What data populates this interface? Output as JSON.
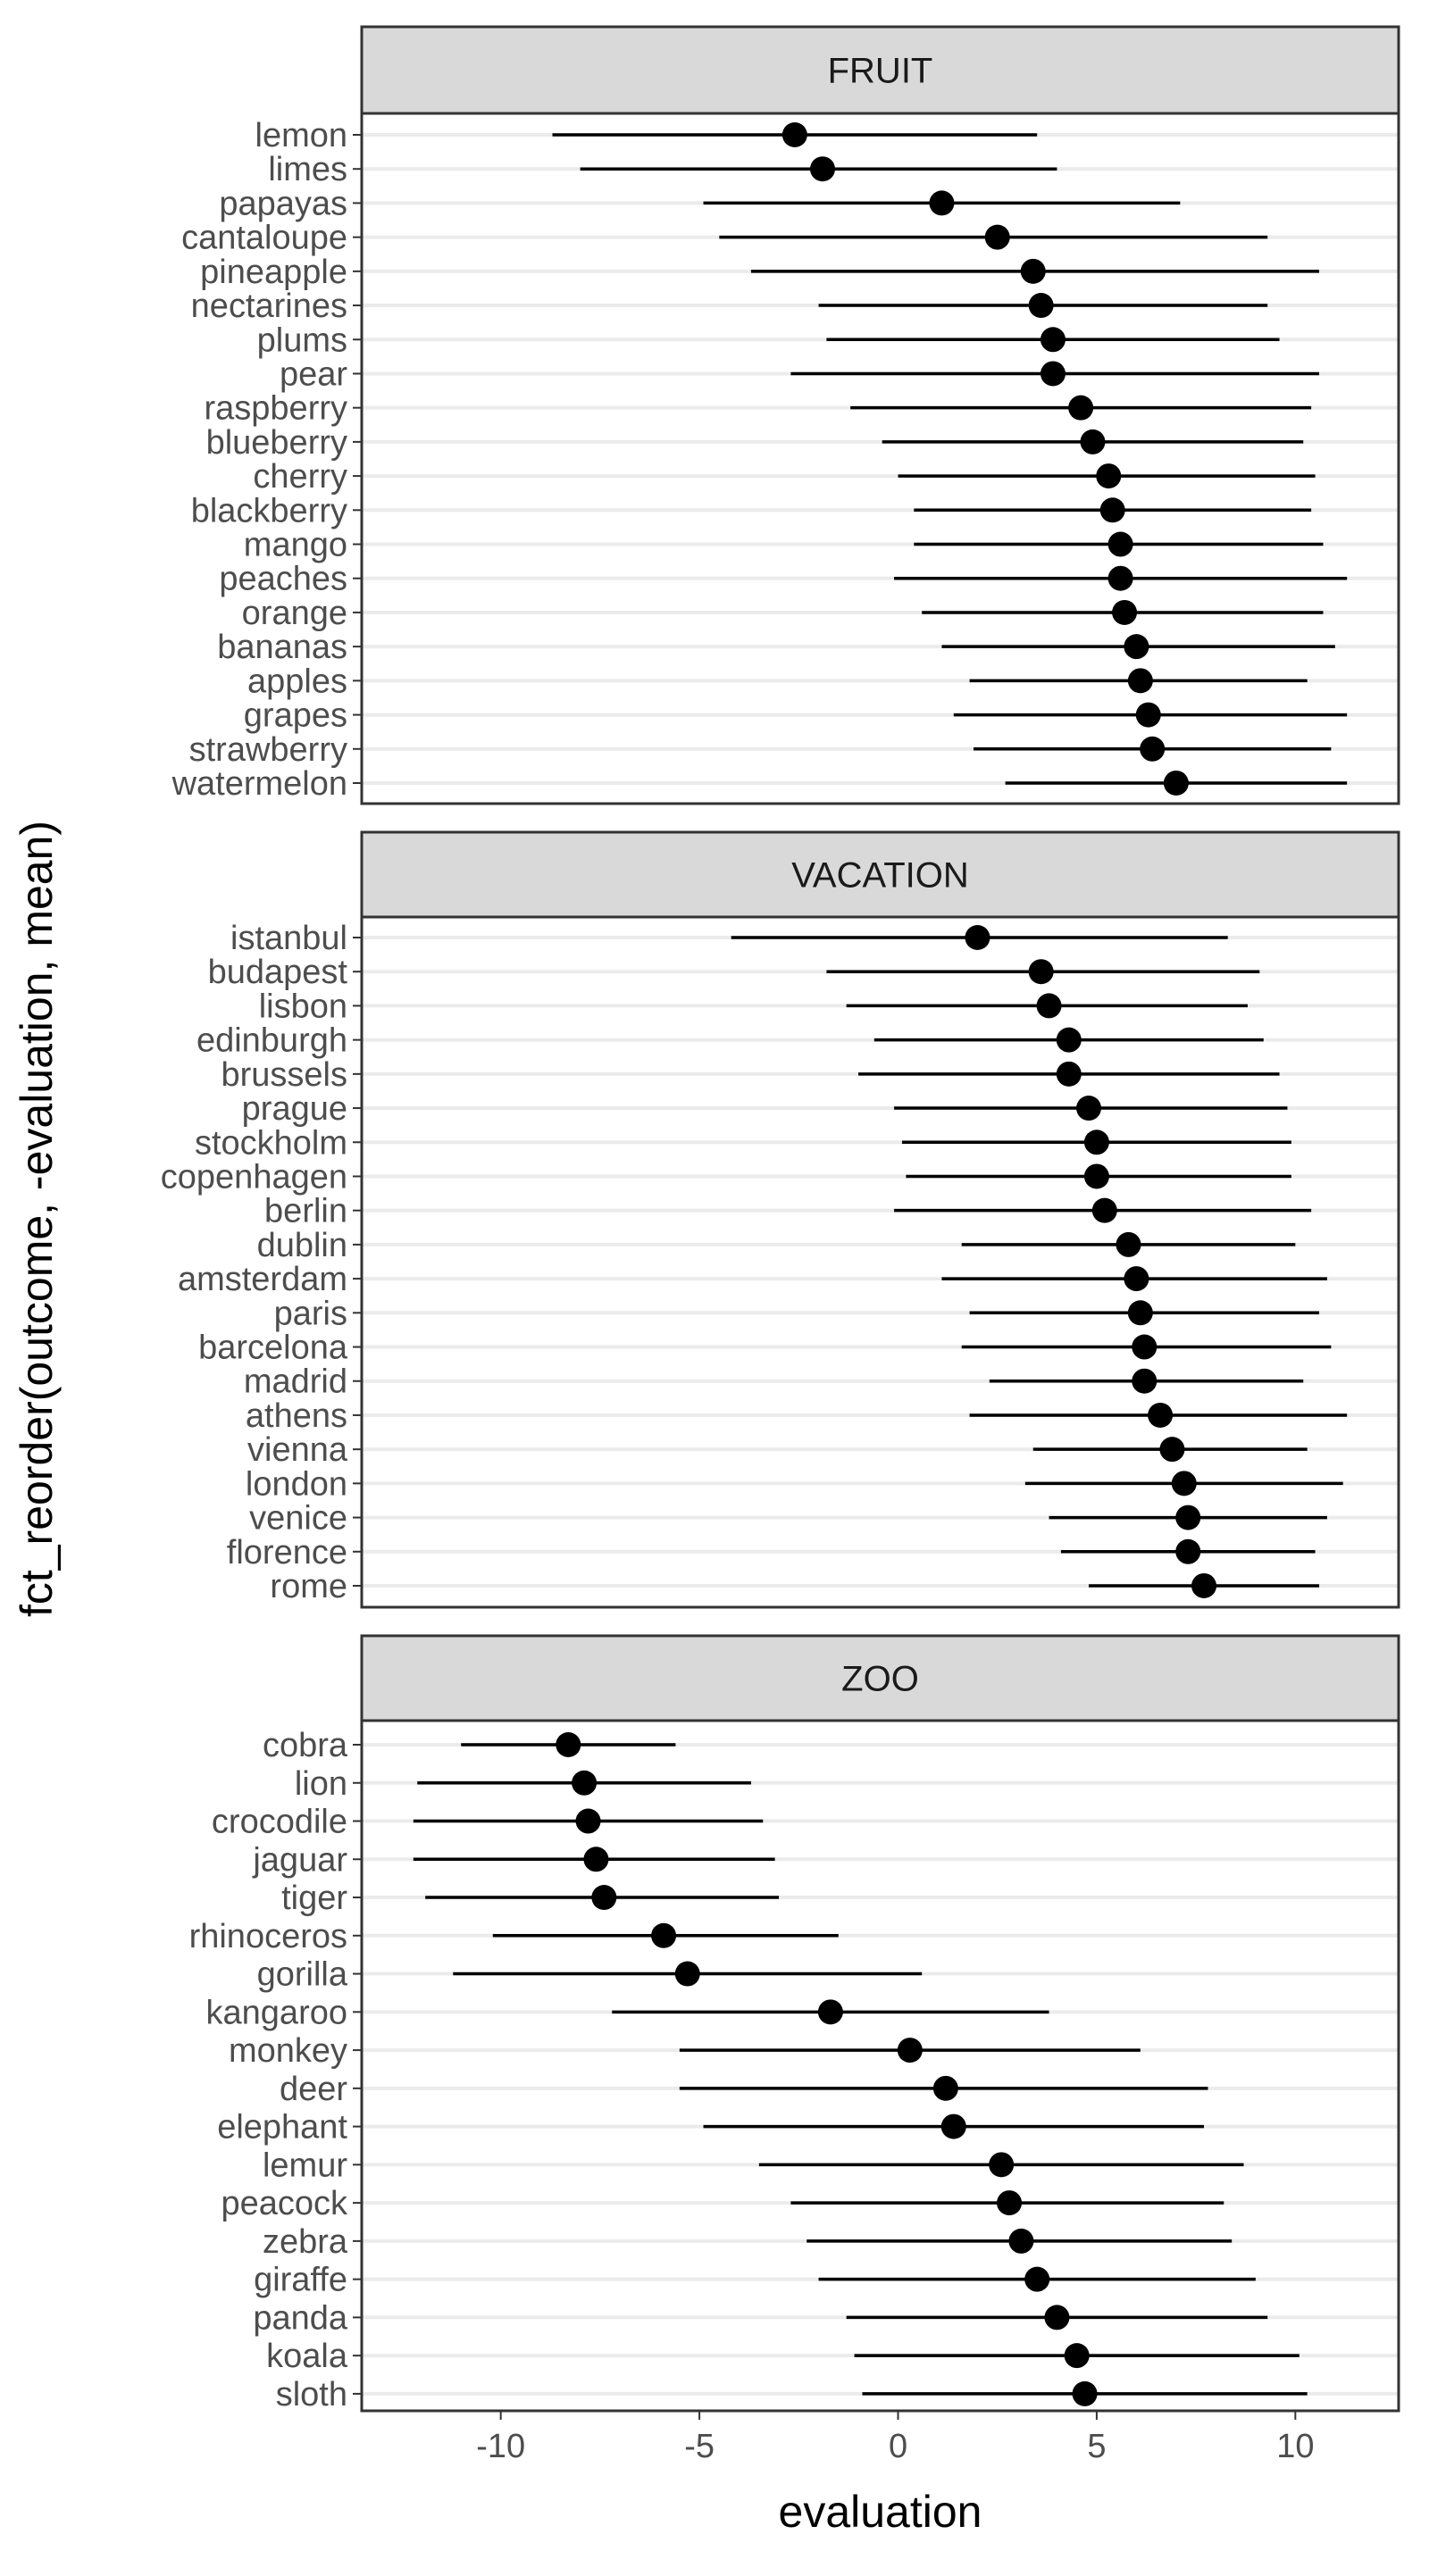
{
  "chart_data": {
    "type": "dot-errorbar-facet",
    "xlabel": "evaluation",
    "ylabel": "fct_reorder(outcome, -evaluation, mean)",
    "xlim": [
      -13.5,
      12.6
    ],
    "xticks": [
      -10,
      -5,
      0,
      5,
      10
    ],
    "xtick_labels": [
      "-10",
      "-5",
      "0",
      "5",
      "10"
    ],
    "grid": true,
    "panels": [
      {
        "strip": "FRUIT",
        "rows": [
          {
            "label": "lemon",
            "mean": -2.6,
            "low": -8.7,
            "high": 3.5
          },
          {
            "label": "limes",
            "mean": -1.9,
            "low": -8.0,
            "high": 4.0
          },
          {
            "label": "papayas",
            "mean": 1.1,
            "low": -4.9,
            "high": 7.1
          },
          {
            "label": "cantaloupe",
            "mean": 2.5,
            "low": -4.5,
            "high": 9.3
          },
          {
            "label": "pineapple",
            "mean": 3.4,
            "low": -3.7,
            "high": 10.6
          },
          {
            "label": "nectarines",
            "mean": 3.6,
            "low": -2.0,
            "high": 9.3
          },
          {
            "label": "plums",
            "mean": 3.9,
            "low": -1.8,
            "high": 9.6
          },
          {
            "label": "pear",
            "mean": 3.9,
            "low": -2.7,
            "high": 10.6
          },
          {
            "label": "raspberry",
            "mean": 4.6,
            "low": -1.2,
            "high": 10.4
          },
          {
            "label": "blueberry",
            "mean": 4.9,
            "low": -0.4,
            "high": 10.2
          },
          {
            "label": "cherry",
            "mean": 5.3,
            "low": 0.0,
            "high": 10.5
          },
          {
            "label": "blackberry",
            "mean": 5.4,
            "low": 0.4,
            "high": 10.4
          },
          {
            "label": "mango",
            "mean": 5.6,
            "low": 0.4,
            "high": 10.7
          },
          {
            "label": "peaches",
            "mean": 5.6,
            "low": -0.1,
            "high": 11.3
          },
          {
            "label": "orange",
            "mean": 5.7,
            "low": 0.6,
            "high": 10.7
          },
          {
            "label": "bananas",
            "mean": 6.0,
            "low": 1.1,
            "high": 11.0
          },
          {
            "label": "apples",
            "mean": 6.1,
            "low": 1.8,
            "high": 10.3
          },
          {
            "label": "grapes",
            "mean": 6.3,
            "low": 1.4,
            "high": 11.3
          },
          {
            "label": "strawberry",
            "mean": 6.4,
            "low": 1.9,
            "high": 10.9
          },
          {
            "label": "watermelon",
            "mean": 7.0,
            "low": 2.7,
            "high": 11.3
          }
        ]
      },
      {
        "strip": "VACATION",
        "rows": [
          {
            "label": "istanbul",
            "mean": 2.0,
            "low": -4.2,
            "high": 8.3
          },
          {
            "label": "budapest",
            "mean": 3.6,
            "low": -1.8,
            "high": 9.1
          },
          {
            "label": "lisbon",
            "mean": 3.8,
            "low": -1.3,
            "high": 8.8
          },
          {
            "label": "edinburgh",
            "mean": 4.3,
            "low": -0.6,
            "high": 9.2
          },
          {
            "label": "brussels",
            "mean": 4.3,
            "low": -1.0,
            "high": 9.6
          },
          {
            "label": "prague",
            "mean": 4.8,
            "low": -0.1,
            "high": 9.8
          },
          {
            "label": "stockholm",
            "mean": 5.0,
            "low": 0.1,
            "high": 9.9
          },
          {
            "label": "copenhagen",
            "mean": 5.0,
            "low": 0.2,
            "high": 9.9
          },
          {
            "label": "berlin",
            "mean": 5.2,
            "low": -0.1,
            "high": 10.4
          },
          {
            "label": "dublin",
            "mean": 5.8,
            "low": 1.6,
            "high": 10.0
          },
          {
            "label": "amsterdam",
            "mean": 6.0,
            "low": 1.1,
            "high": 10.8
          },
          {
            "label": "paris",
            "mean": 6.1,
            "low": 1.8,
            "high": 10.6
          },
          {
            "label": "barcelona",
            "mean": 6.2,
            "low": 1.6,
            "high": 10.9
          },
          {
            "label": "madrid",
            "mean": 6.2,
            "low": 2.3,
            "high": 10.2
          },
          {
            "label": "athens",
            "mean": 6.6,
            "low": 1.8,
            "high": 11.3
          },
          {
            "label": "vienna",
            "mean": 6.9,
            "low": 3.4,
            "high": 10.3
          },
          {
            "label": "london",
            "mean": 7.2,
            "low": 3.2,
            "high": 11.2
          },
          {
            "label": "venice",
            "mean": 7.3,
            "low": 3.8,
            "high": 10.8
          },
          {
            "label": "florence",
            "mean": 7.3,
            "low": 4.1,
            "high": 10.5
          },
          {
            "label": "rome",
            "mean": 7.7,
            "low": 4.8,
            "high": 10.6
          }
        ]
      },
      {
        "strip": "ZOO",
        "rows": [
          {
            "label": "cobra",
            "mean": -8.3,
            "low": -11.0,
            "high": -5.6
          },
          {
            "label": "lion",
            "mean": -7.9,
            "low": -12.1,
            "high": -3.7
          },
          {
            "label": "crocodile",
            "mean": -7.8,
            "low": -12.2,
            "high": -3.4
          },
          {
            "label": "jaguar",
            "mean": -7.6,
            "low": -12.2,
            "high": -3.1
          },
          {
            "label": "tiger",
            "mean": -7.4,
            "low": -11.9,
            "high": -3.0
          },
          {
            "label": "rhinoceros",
            "mean": -5.9,
            "low": -10.2,
            "high": -1.5
          },
          {
            "label": "gorilla",
            "mean": -5.3,
            "low": -11.2,
            "high": 0.6
          },
          {
            "label": "kangaroo",
            "mean": -1.7,
            "low": -7.2,
            "high": 3.8
          },
          {
            "label": "monkey",
            "mean": 0.3,
            "low": -5.5,
            "high": 6.1
          },
          {
            "label": "deer",
            "mean": 1.2,
            "low": -5.5,
            "high": 7.8
          },
          {
            "label": "elephant",
            "mean": 1.4,
            "low": -4.9,
            "high": 7.7
          },
          {
            "label": "lemur",
            "mean": 2.6,
            "low": -3.5,
            "high": 8.7
          },
          {
            "label": "peacock",
            "mean": 2.8,
            "low": -2.7,
            "high": 8.2
          },
          {
            "label": "zebra",
            "mean": 3.1,
            "low": -2.3,
            "high": 8.4
          },
          {
            "label": "giraffe",
            "mean": 3.5,
            "low": -2.0,
            "high": 9.0
          },
          {
            "label": "panda",
            "mean": 4.0,
            "low": -1.3,
            "high": 9.3
          },
          {
            "label": "koala",
            "mean": 4.5,
            "low": -1.1,
            "high": 10.1
          },
          {
            "label": "sloth",
            "mean": 4.7,
            "low": -0.9,
            "high": 10.3
          }
        ]
      }
    ]
  }
}
